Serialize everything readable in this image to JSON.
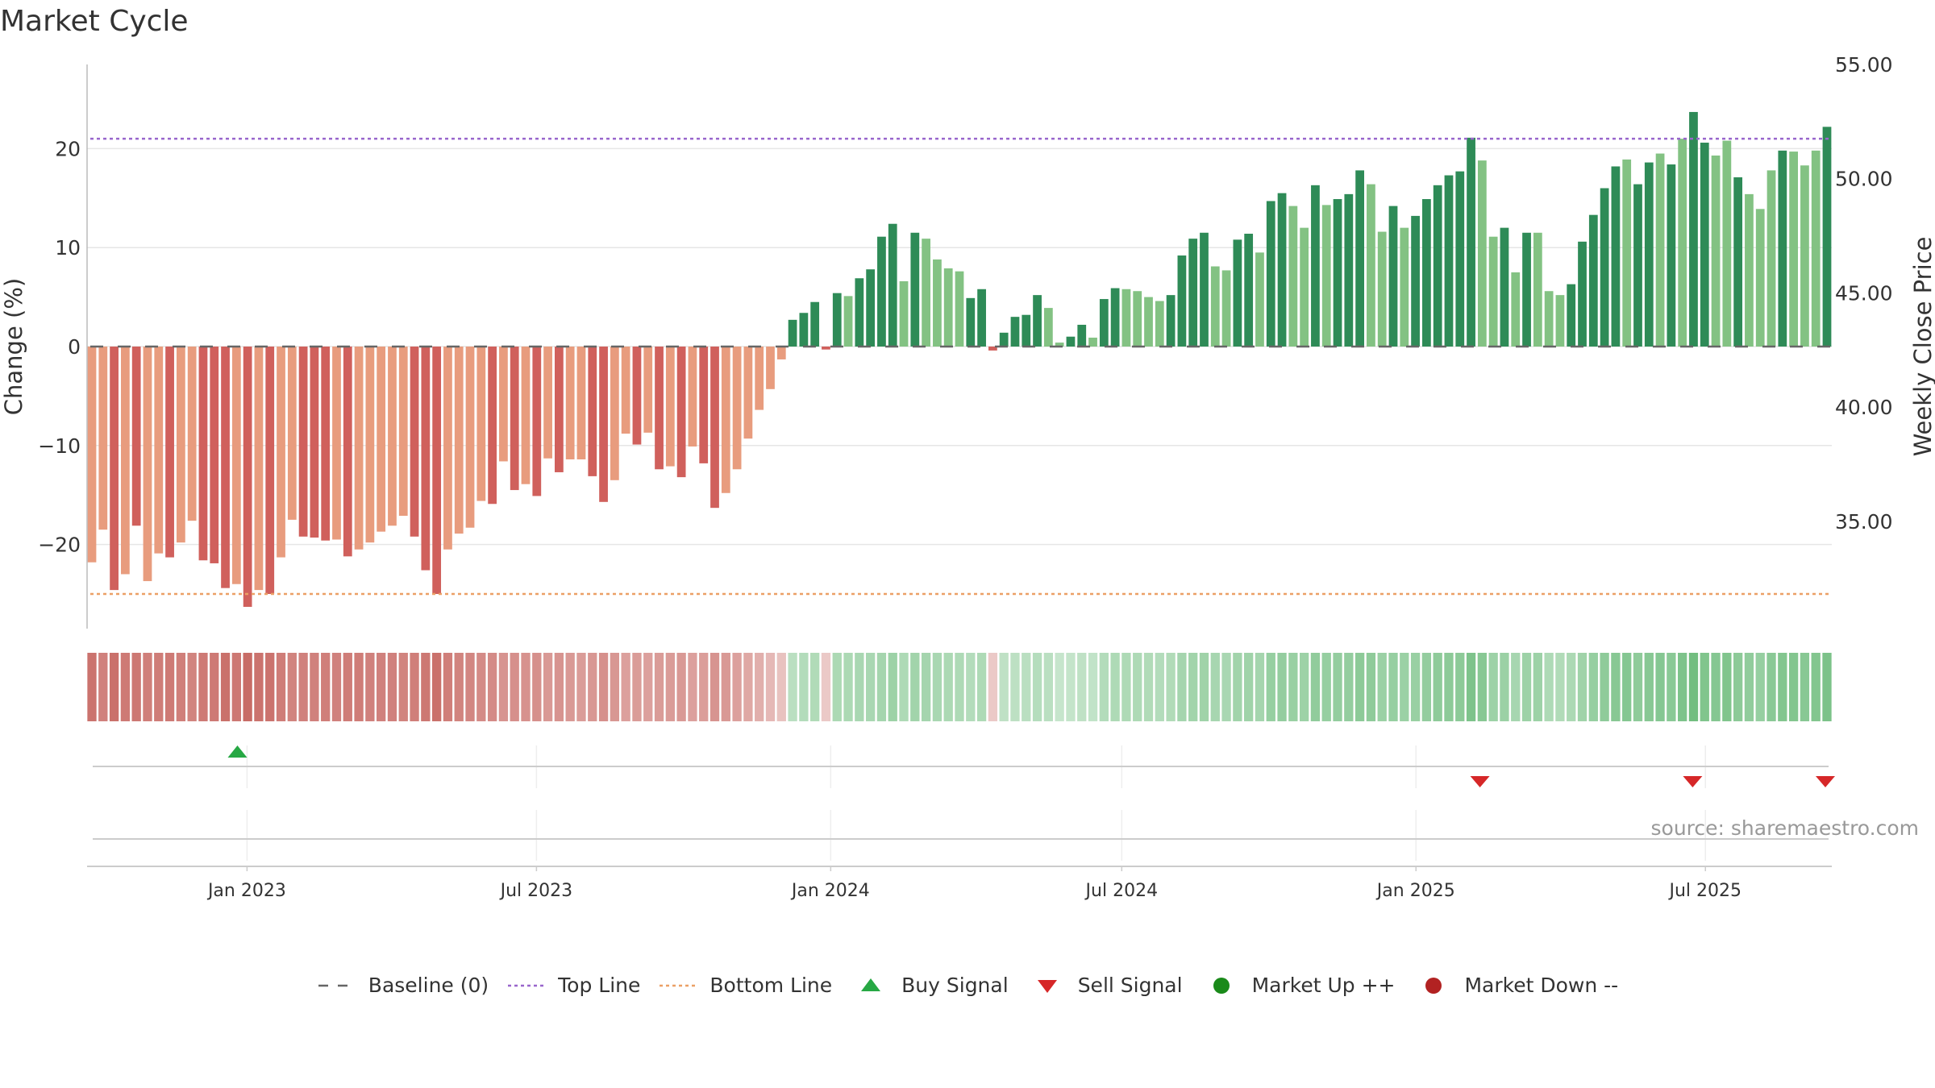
{
  "chart_data": {
    "type": "bar",
    "title": "Market Cycle",
    "ylabel": "Change (%)",
    "y2label": "Weekly Close Price",
    "ylim": [
      -28.5,
      28.5
    ],
    "y2lim": [
      30.3,
      55.0
    ],
    "yticks": [
      -20,
      -10,
      0,
      10,
      20
    ],
    "yticklabels": [
      "−20",
      "−10",
      "0",
      "10",
      "20"
    ],
    "y2ticks": [
      35,
      40,
      45,
      50,
      55
    ],
    "y2ticklabels": [
      "35.00",
      "40.00",
      "45.00",
      "50.00",
      "55.00"
    ],
    "x_start": "2022-09-26",
    "x_end": "2025-09-15",
    "xticks": [
      {
        "date": "2023-01-01",
        "label": "Jan 2023"
      },
      {
        "date": "2023-07-01",
        "label": "Jul 2023"
      },
      {
        "date": "2024-01-01",
        "label": "Jan 2024"
      },
      {
        "date": "2024-07-01",
        "label": "Jul 2024"
      },
      {
        "date": "2025-01-01",
        "label": "Jan 2025"
      },
      {
        "date": "2025-07-01",
        "label": "Jul 2025"
      }
    ],
    "grid": true,
    "top_line": 21,
    "bottom_line": -25,
    "change_pct": [
      -21.8,
      -18.5,
      -24.6,
      -23.0,
      -18.1,
      -23.7,
      -20.9,
      -21.3,
      -19.8,
      -17.6,
      -21.6,
      -21.9,
      -24.4,
      -24.0,
      -26.3,
      -24.6,
      -25.0,
      -21.3,
      -17.5,
      -19.2,
      -19.3,
      -19.6,
      -19.5,
      -21.2,
      -20.5,
      -19.8,
      -18.7,
      -18.1,
      -17.1,
      -19.2,
      -22.6,
      -25.0,
      -20.5,
      -18.9,
      -18.3,
      -15.6,
      -15.9,
      -11.6,
      -14.5,
      -13.9,
      -15.1,
      -11.3,
      -12.7,
      -11.4,
      -11.4,
      -13.1,
      -15.7,
      -13.5,
      -8.8,
      -9.9,
      -8.7,
      -12.4,
      -12.1,
      -13.2,
      -10.1,
      -11.8,
      -16.3,
      -14.8,
      -12.4,
      -9.3,
      -6.4,
      -4.3,
      -1.3,
      2.7,
      3.4,
      4.5,
      -0.3,
      5.4,
      5.1,
      6.9,
      7.8,
      11.1,
      12.4,
      6.6,
      11.5,
      10.9,
      8.8,
      7.9,
      7.6,
      4.9,
      5.8,
      -0.4,
      1.4,
      3.0,
      3.2,
      5.2,
      3.9,
      0.4,
      1.0,
      2.2,
      0.9,
      4.8,
      5.9,
      5.8,
      5.6,
      5.0,
      4.6,
      5.2,
      9.2,
      10.9,
      11.5,
      8.1,
      7.7,
      10.8,
      11.4,
      9.5,
      14.7,
      15.5,
      14.2,
      12.0,
      16.3,
      14.3,
      14.9,
      15.4,
      17.8,
      16.4,
      11.6,
      14.2,
      12.0,
      13.2,
      14.9,
      16.3,
      17.3,
      17.7,
      21.1,
      18.8,
      11.1,
      12.0,
      7.5,
      11.5,
      11.5,
      5.6,
      5.2,
      6.3,
      10.6,
      13.3,
      16.0,
      18.2,
      18.9,
      16.4,
      18.6,
      19.5,
      18.4,
      21.0,
      23.7,
      20.6,
      19.3,
      20.8,
      17.1,
      15.4,
      13.9,
      17.8,
      19.8,
      19.7,
      18.3,
      19.8,
      22.2
    ],
    "momentum_signal": [
      -1,
      -1,
      1,
      -1,
      1,
      -1,
      -1,
      1,
      -1,
      -1,
      1,
      1,
      1,
      -1,
      1,
      -1,
      1,
      -1,
      -1,
      1,
      1,
      1,
      -1,
      1,
      -1,
      -1,
      -1,
      -1,
      -1,
      1,
      1,
      1,
      -1,
      -1,
      -1,
      -1,
      1,
      -1,
      1,
      -1,
      1,
      -1,
      1,
      -1,
      -1,
      1,
      1,
      -1,
      -1,
      1,
      -1,
      1,
      -1,
      1,
      -1,
      1,
      1,
      -1,
      -1,
      -1,
      -1,
      -1,
      -1,
      1,
      1,
      1,
      1,
      1,
      -1,
      1,
      1,
      1,
      1,
      -1,
      1,
      -1,
      -1,
      -1,
      -1,
      1,
      1,
      1,
      1,
      1,
      1,
      1,
      -1,
      -1,
      1,
      1,
      -1,
      1,
      1,
      -1,
      -1,
      -1,
      -1,
      1,
      1,
      1,
      1,
      -1,
      -1,
      1,
      1,
      -1,
      1,
      1,
      -1,
      -1,
      1,
      -1,
      1,
      1,
      1,
      -1,
      -1,
      1,
      -1,
      1,
      1,
      1,
      1,
      1,
      1,
      -1,
      -1,
      1,
      -1,
      1,
      -1,
      -1,
      -1,
      1,
      1,
      1,
      1,
      1,
      -1,
      1,
      1,
      -1,
      1,
      -1,
      1,
      1,
      -1,
      -1,
      1,
      -1,
      -1,
      -1,
      1,
      -1,
      -1,
      -1,
      1,
      1
    ],
    "heat_intensity": [
      0.84,
      0.72,
      0.86,
      0.78,
      0.8,
      0.74,
      0.76,
      0.78,
      0.74,
      0.7,
      0.78,
      0.78,
      0.86,
      0.8,
      0.9,
      0.84,
      0.84,
      0.76,
      0.7,
      0.72,
      0.72,
      0.74,
      0.72,
      0.76,
      0.76,
      0.72,
      0.72,
      0.72,
      0.7,
      0.74,
      0.8,
      0.86,
      0.74,
      0.7,
      0.68,
      0.64,
      0.64,
      0.56,
      0.6,
      0.58,
      0.6,
      0.52,
      0.56,
      0.52,
      0.5,
      0.54,
      0.6,
      0.54,
      0.46,
      0.5,
      0.46,
      0.5,
      0.5,
      0.52,
      0.46,
      0.48,
      0.56,
      0.52,
      0.46,
      0.4,
      0.34,
      0.26,
      0.18,
      0.24,
      0.3,
      0.32,
      0.12,
      0.36,
      0.36,
      0.38,
      0.38,
      0.42,
      0.48,
      0.34,
      0.44,
      0.42,
      0.38,
      0.36,
      0.34,
      0.3,
      0.34,
      0.12,
      0.2,
      0.22,
      0.24,
      0.28,
      0.24,
      0.14,
      0.16,
      0.2,
      0.18,
      0.3,
      0.34,
      0.34,
      0.34,
      0.32,
      0.3,
      0.32,
      0.42,
      0.44,
      0.46,
      0.4,
      0.38,
      0.44,
      0.46,
      0.42,
      0.54,
      0.56,
      0.52,
      0.48,
      0.58,
      0.54,
      0.56,
      0.56,
      0.62,
      0.6,
      0.5,
      0.54,
      0.5,
      0.52,
      0.56,
      0.6,
      0.62,
      0.62,
      0.74,
      0.66,
      0.48,
      0.5,
      0.4,
      0.48,
      0.48,
      0.34,
      0.32,
      0.36,
      0.46,
      0.54,
      0.6,
      0.66,
      0.68,
      0.6,
      0.66,
      0.68,
      0.64,
      0.74,
      0.84,
      0.72,
      0.68,
      0.72,
      0.62,
      0.58,
      0.54,
      0.64,
      0.7,
      0.7,
      0.66,
      0.7,
      0.76
    ],
    "buy_signals": [
      "2022-12-26"
    ],
    "sell_signals": [
      "2025-02-10",
      "2025-06-23",
      "2025-09-15"
    ],
    "market_up_signals": [],
    "market_down_signals": [],
    "colors": {
      "pos_strong": "#2e8b57",
      "pos_weak": "#83c283",
      "neg_strong": "#d0605c",
      "neg_weak": "#e89c7e",
      "heat_pos": "#5fb56f",
      "heat_neg": "#c4605a",
      "top_line": "#9966cc",
      "bottom_line": "#eba066",
      "buy": "#27a844",
      "sell": "#d62728",
      "market_up": "#1a8a1a",
      "market_down": "#b22222",
      "baseline": "#666666"
    },
    "legend": {
      "placement": "bottom",
      "items": [
        {
          "label": "Baseline (0)",
          "symbol": "dash",
          "color": "#666666"
        },
        {
          "label": "Top Line",
          "symbol": "dot",
          "color": "#9966cc"
        },
        {
          "label": "Bottom Line",
          "symbol": "dot",
          "color": "#eba066"
        },
        {
          "label": "Buy Signal",
          "symbol": "triangle-up",
          "color": "#27a844"
        },
        {
          "label": "Sell Signal",
          "symbol": "triangle-down",
          "color": "#d62728"
        },
        {
          "label": "Market Up ++",
          "symbol": "circle",
          "color": "#1a8a1a"
        },
        {
          "label": "Market Down --",
          "symbol": "circle",
          "color": "#b22222"
        }
      ]
    }
  },
  "source": "source: sharemaestro.com"
}
